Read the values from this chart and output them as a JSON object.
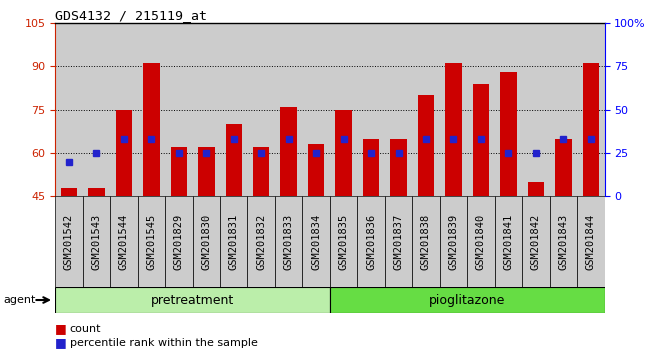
{
  "title": "GDS4132 / 215119_at",
  "samples": [
    "GSM201542",
    "GSM201543",
    "GSM201544",
    "GSM201545",
    "GSM201829",
    "GSM201830",
    "GSM201831",
    "GSM201832",
    "GSM201833",
    "GSM201834",
    "GSM201835",
    "GSM201836",
    "GSM201837",
    "GSM201838",
    "GSM201839",
    "GSM201840",
    "GSM201841",
    "GSM201842",
    "GSM201843",
    "GSM201844"
  ],
  "count_values": [
    48,
    48,
    75,
    91,
    62,
    62,
    70,
    62,
    76,
    63,
    75,
    65,
    65,
    80,
    91,
    84,
    88,
    50,
    65,
    91
  ],
  "percentile_values": [
    20,
    25,
    33,
    33,
    25,
    25,
    33,
    25,
    33,
    25,
    33,
    25,
    25,
    33,
    33,
    33,
    25,
    25,
    33,
    33
  ],
  "pretreatment_count": 10,
  "pioglitazone_count": 10,
  "ylim_left": [
    45,
    105
  ],
  "ylim_right": [
    0,
    100
  ],
  "yticks_left": [
    45,
    60,
    75,
    90,
    105
  ],
  "ytick_right_labels": [
    "0",
    "25",
    "50",
    "75",
    "100%"
  ],
  "yticks_right": [
    0,
    25,
    50,
    75,
    100
  ],
  "bar_color": "#cc0000",
  "percentile_color": "#2222cc",
  "pretreatment_color": "#bbeeaa",
  "pioglitazone_color": "#66dd44",
  "agent_label": "agent",
  "pretreatment_label": "pretreatment",
  "pioglitazone_label": "pioglitazone",
  "legend_count": "count",
  "legend_percentile": "percentile rank within the sample",
  "bar_width": 0.6,
  "column_bg": "#cccccc",
  "tick_label_fontsize": 7.5,
  "bar_top_border": "#000000"
}
